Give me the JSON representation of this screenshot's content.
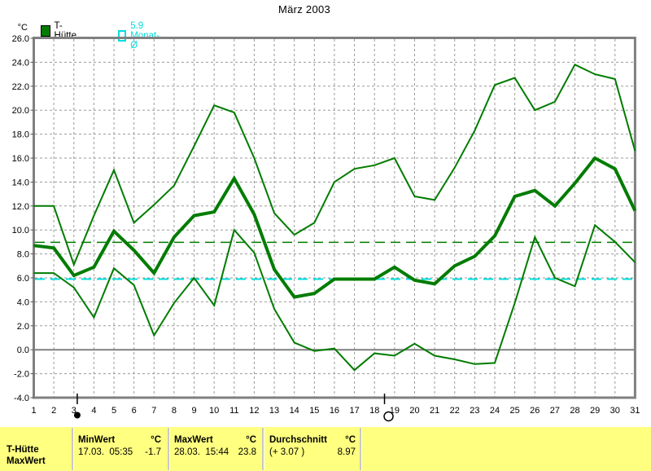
{
  "title": "März 2003",
  "y_axis": {
    "unit_label": "°C"
  },
  "legend": {
    "series": [
      {
        "label": "T-Hütte",
        "color": "#007C00",
        "swatch": "filled-square"
      },
      {
        "label": "5.9 Monat-Ø",
        "color": "#00DDDD",
        "swatch": "outline-square"
      }
    ]
  },
  "chart_data": {
    "type": "line",
    "title": "März 2003",
    "xlabel": "",
    "ylabel": "°C",
    "ylim": [
      -4,
      26
    ],
    "ytick_step": 2,
    "grid": true,
    "legend_position": "top-left",
    "x": [
      1,
      2,
      3,
      4,
      5,
      6,
      7,
      8,
      9,
      10,
      11,
      12,
      13,
      14,
      15,
      16,
      17,
      18,
      19,
      20,
      21,
      22,
      23,
      24,
      25,
      26,
      27,
      28,
      29,
      30,
      31
    ],
    "series": [
      {
        "name": "tagesmaximum",
        "thick": false,
        "values": [
          12.0,
          12.0,
          7.1,
          11.2,
          15.0,
          10.6,
          12.1,
          13.7,
          17.0,
          20.4,
          19.8,
          16.0,
          11.4,
          9.6,
          10.6,
          14.0,
          15.1,
          15.4,
          16.0,
          12.8,
          12.5,
          15.2,
          18.3,
          22.1,
          22.7,
          20.0,
          20.7,
          23.8,
          23.0,
          22.6,
          16.6
        ]
      },
      {
        "name": "tagesmittel",
        "thick": true,
        "values": [
          8.7,
          8.5,
          6.2,
          6.9,
          9.9,
          8.3,
          6.4,
          9.4,
          11.2,
          11.5,
          14.3,
          11.3,
          6.7,
          4.4,
          4.7,
          5.9,
          5.9,
          5.9,
          6.9,
          5.8,
          5.5,
          7.0,
          7.8,
          9.5,
          12.8,
          13.3,
          12.0,
          13.9,
          16.0,
          15.1,
          11.6
        ]
      },
      {
        "name": "tagesminimum",
        "thick": false,
        "values": [
          6.4,
          6.4,
          5.2,
          2.7,
          6.8,
          5.4,
          1.2,
          3.9,
          6.0,
          3.7,
          10.0,
          8.1,
          3.4,
          0.6,
          -0.1,
          0.1,
          -1.7,
          -0.3,
          -0.5,
          0.5,
          -0.5,
          -0.8,
          -1.2,
          -1.1,
          3.9,
          9.4,
          6.0,
          5.3,
          10.4,
          9.0,
          7.3
        ]
      }
    ],
    "reference_lines": [
      {
        "name": "durchschnitt-linie",
        "value": 8.97,
        "color": "#007C00",
        "style": "dashed",
        "width": 1.5
      },
      {
        "name": "monatsmittel-linie",
        "value": 5.9,
        "color": "#00DDDD",
        "style": "dashed",
        "width": 2
      },
      {
        "name": "null-linie",
        "value": 0,
        "color": "#808080",
        "style": "solid",
        "width": 2
      }
    ],
    "moon_markers": [
      {
        "type": "new-moon",
        "day": 3.17
      },
      {
        "type": "full-moon",
        "day": 18.5
      }
    ]
  },
  "summary_table": {
    "row_labels": [
      "T-Hütte",
      "MaxWert"
    ],
    "columns": [
      {
        "header": "MinWert",
        "unit": "°C",
        "detail": "17.03.  05:35",
        "value": "-1.7"
      },
      {
        "header": "MaxWert",
        "unit": "°C",
        "detail": "28.03.  15:44",
        "value": "23.8"
      },
      {
        "header": "Durchschnitt",
        "unit": "°C",
        "detail": "(+ 3.07 )",
        "value": "8.97"
      }
    ],
    "background": "#FFFF80"
  },
  "colors": {
    "line_green": "#007C00",
    "reference_cyan": "#00DDDD",
    "grid_gray": "#9a9a9a",
    "border_gray": "#808080",
    "panel_yellow": "#FFFF80"
  }
}
